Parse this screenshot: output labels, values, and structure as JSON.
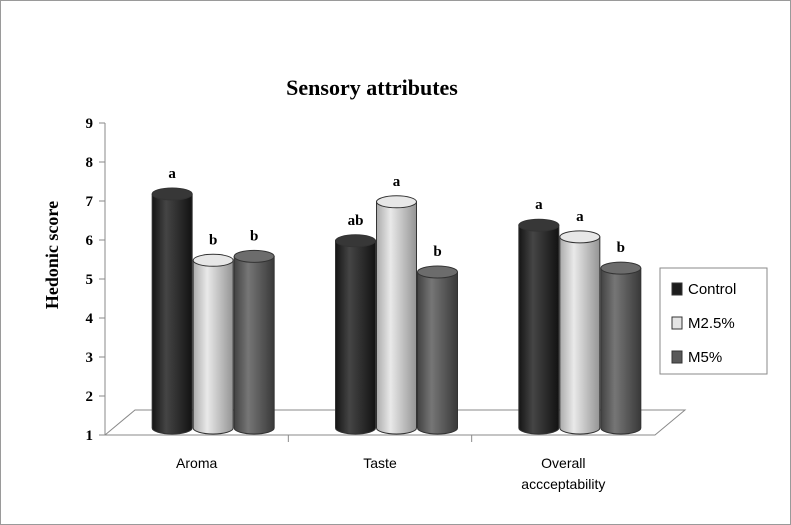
{
  "chart_data": {
    "type": "bar",
    "title": "Sensory attributes",
    "xlabel": "",
    "ylabel": "Hedonic score",
    "ylim": [
      1,
      9
    ],
    "yticks": [
      "1",
      "2",
      "3",
      "4",
      "5",
      "6",
      "7",
      "8",
      "9"
    ],
    "categories": [
      "Aroma",
      "Taste",
      "Overall accceptability"
    ],
    "category_lines": [
      [
        "Aroma"
      ],
      [
        "Taste"
      ],
      [
        "Overall",
        "accceptability"
      ]
    ],
    "series": [
      {
        "name": "Control",
        "color": "#1c1c1c",
        "values": [
          7.0,
          5.8,
          6.2
        ],
        "labels": [
          "a",
          "ab",
          "a"
        ]
      },
      {
        "name": "M2.5%",
        "color": "#e4e4e4",
        "values": [
          5.3,
          6.8,
          5.9
        ],
        "labels": [
          "b",
          "a",
          "a"
        ]
      },
      {
        "name": "M5%",
        "color": "#585858",
        "values": [
          5.4,
          5.0,
          5.1
        ],
        "labels": [
          "b",
          "b",
          "b"
        ]
      }
    ],
    "legend": "right",
    "grid": false
  }
}
